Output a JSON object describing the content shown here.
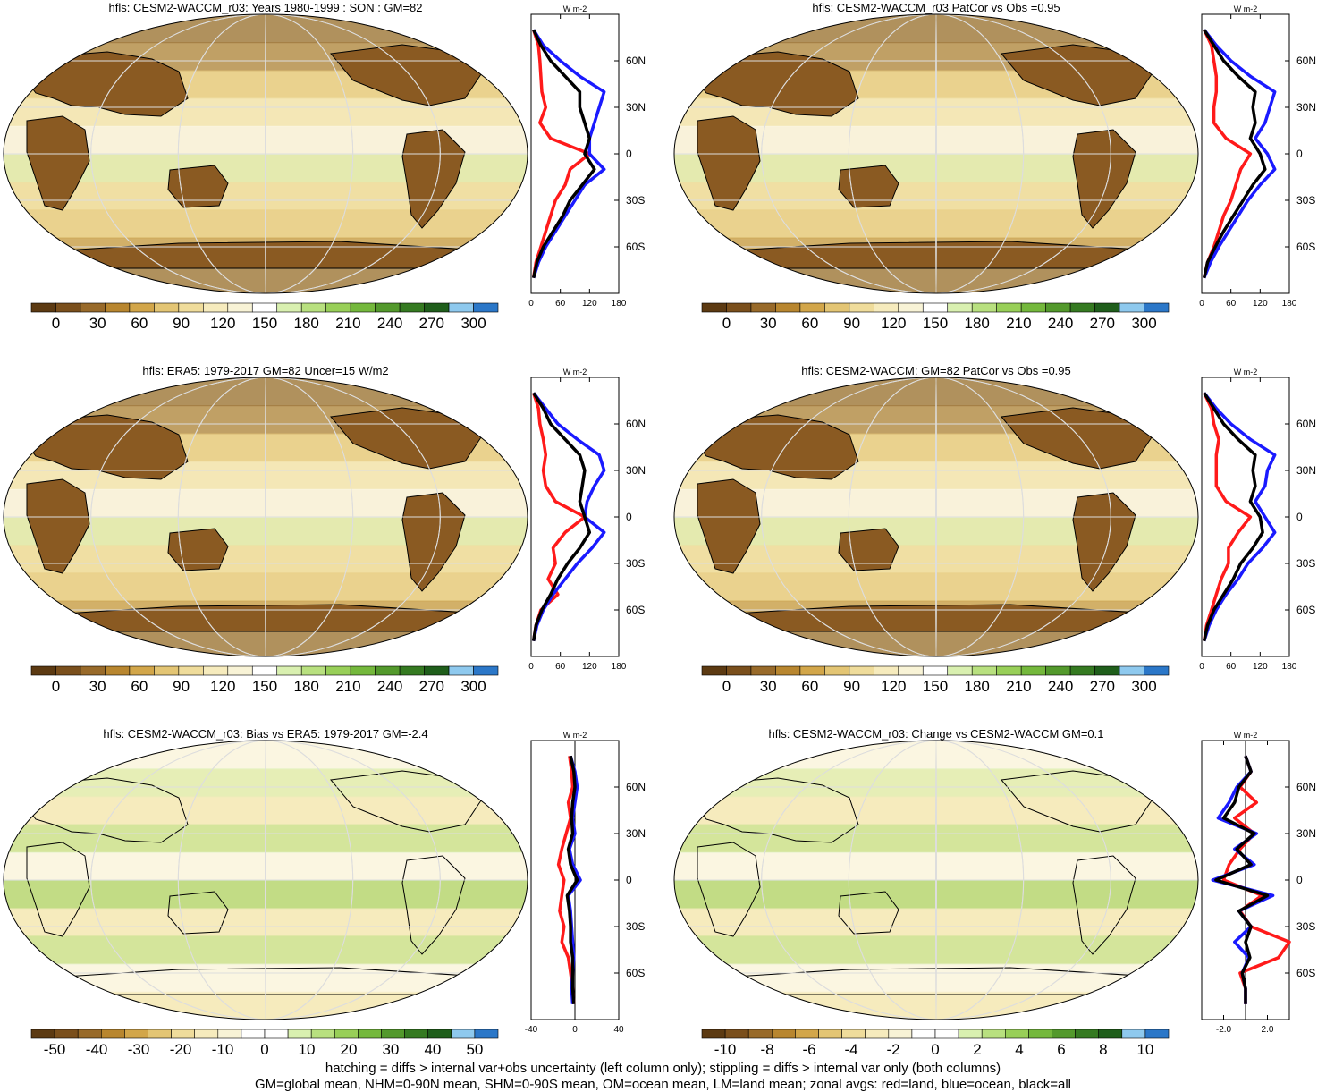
{
  "footer": {
    "line1": "hatching = diffs > internal var+obs uncertainty (left column only); stippling = diffs > internal var only (both columns)",
    "line2": "GM=global mean, NHM=0-90N mean, SHM=0-90S mean, OM=ocean mean, LM=land mean; zonal avgs: red=land, blue=ocean, black=all"
  },
  "colors": {
    "land": "#ff1a1a",
    "ocean": "#1a1aff",
    "all": "#000000",
    "abs_palette": [
      "#5c3a12",
      "#7a4f1c",
      "#986a2a",
      "#b8862f",
      "#d2a64a",
      "#e3c574",
      "#efdc9b",
      "#f6ebbd",
      "#f8f3d6",
      "#ffffff",
      "#d9f0b0",
      "#b8e07f",
      "#98cf58",
      "#74b83c",
      "#53992c",
      "#357a21",
      "#1f5e1b",
      "#8ec9ee",
      "#2b77c8"
    ],
    "diff_palette": [
      "#5c3a12",
      "#7a4f1c",
      "#986a2a",
      "#b8862f",
      "#d2a64a",
      "#e3c574",
      "#efdc9b",
      "#f6ebbd",
      "#f8f3d6",
      "#ffffff",
      "#ffffff",
      "#d9f0b0",
      "#b8e07f",
      "#98cf58",
      "#74b83c",
      "#53992c",
      "#357a21",
      "#1f5e1b",
      "#8ec9ee",
      "#2b77c8"
    ],
    "continent_fill": "#8a5a22",
    "ocean_fill": "#f2e3ad"
  },
  "chart_data": [
    {
      "type": "heatmap",
      "title": "hfls: CESM2-WACCM_r03: Years 1980-1999 : SON : GM=82",
      "colorbar": {
        "labels": [
          "0",
          "30",
          "60",
          "90",
          "120",
          "150",
          "180",
          "210",
          "240",
          "270",
          "300"
        ]
      },
      "zonal": {
        "unit": "W m-2",
        "xlim": [
          0,
          180
        ],
        "xticks": [
          "0",
          "60",
          "120",
          "180"
        ],
        "ylim": [
          -90,
          90
        ],
        "yticks": [
          "60N",
          "30N",
          "0",
          "30S",
          "60S"
        ],
        "lat": [
          80,
          70,
          60,
          50,
          40,
          30,
          20,
          10,
          0,
          -10,
          -20,
          -30,
          -40,
          -50,
          -60,
          -70,
          -80
        ],
        "land": [
          5,
          15,
          18,
          20,
          22,
          30,
          18,
          40,
          120,
          80,
          70,
          50,
          40,
          30,
          20,
          10,
          5
        ],
        "ocean": [
          5,
          25,
          60,
          100,
          150,
          140,
          130,
          120,
          120,
          150,
          110,
          90,
          70,
          50,
          30,
          15,
          5
        ],
        "all": [
          5,
          20,
          40,
          70,
          100,
          100,
          110,
          120,
          110,
          130,
          105,
          80,
          65,
          45,
          25,
          12,
          5
        ]
      }
    },
    {
      "type": "heatmap",
      "title": "hfls: CESM2-WACCM_r03 PatCor vs Obs =0.95",
      "colorbar": {
        "labels": [
          "0",
          "30",
          "60",
          "90",
          "120",
          "150",
          "180",
          "210",
          "240",
          "270",
          "300"
        ]
      },
      "zonal": {
        "unit": "W m-2",
        "xlim": [
          0,
          180
        ],
        "xticks": [
          "0",
          "60",
          "120",
          "180"
        ],
        "ylim": [
          -90,
          90
        ],
        "yticks": [
          "60N",
          "30N",
          "0",
          "30S",
          "60S"
        ],
        "lat": [
          80,
          70,
          60,
          50,
          40,
          30,
          20,
          10,
          0,
          -10,
          -20,
          -30,
          -40,
          -50,
          -60,
          -70,
          -80
        ],
        "land": [
          5,
          20,
          25,
          30,
          30,
          25,
          25,
          50,
          100,
          80,
          70,
          60,
          45,
          35,
          25,
          12,
          5
        ],
        "ocean": [
          5,
          30,
          60,
          100,
          150,
          140,
          130,
          110,
          135,
          150,
          120,
          95,
          75,
          55,
          35,
          18,
          5
        ],
        "all": [
          5,
          25,
          45,
          75,
          110,
          105,
          110,
          100,
          120,
          130,
          105,
          85,
          65,
          45,
          28,
          12,
          5
        ]
      }
    },
    {
      "type": "heatmap",
      "title": "hfls: ERA5: 1979-2017 GM=82 Uncer=15 W/m2",
      "colorbar": {
        "labels": [
          "0",
          "30",
          "60",
          "90",
          "120",
          "150",
          "180",
          "210",
          "240",
          "270",
          "300"
        ]
      },
      "zonal": {
        "unit": "W m-2",
        "xlim": [
          0,
          180
        ],
        "xticks": [
          "0",
          "60",
          "120",
          "180"
        ],
        "ylim": [
          -90,
          90
        ],
        "yticks": [
          "60N",
          "30N",
          "0",
          "30S",
          "60S"
        ],
        "lat": [
          80,
          70,
          60,
          50,
          40,
          30,
          20,
          10,
          0,
          -10,
          -20,
          -30,
          -40,
          -50,
          -60,
          -70,
          -80
        ],
        "land": [
          5,
          15,
          18,
          25,
          30,
          25,
          30,
          50,
          110,
          70,
          45,
          50,
          35,
          55,
          20,
          10,
          5
        ],
        "ocean": [
          5,
          30,
          55,
          95,
          140,
          150,
          130,
          115,
          110,
          150,
          125,
          95,
          70,
          45,
          25,
          12,
          5
        ],
        "all": [
          5,
          25,
          40,
          70,
          100,
          110,
          105,
          100,
          110,
          120,
          100,
          75,
          55,
          40,
          22,
          10,
          5
        ]
      }
    },
    {
      "type": "heatmap",
      "title": "hfls: CESM2-WACCM: GM=82 PatCor vs Obs =0.95",
      "colorbar": {
        "labels": [
          "0",
          "30",
          "60",
          "90",
          "120",
          "150",
          "180",
          "210",
          "240",
          "270",
          "300"
        ]
      },
      "zonal": {
        "unit": "W m-2",
        "xlim": [
          0,
          180
        ],
        "xticks": [
          "0",
          "60",
          "120",
          "180"
        ],
        "ylim": [
          -90,
          90
        ],
        "yticks": [
          "60N",
          "30N",
          "0",
          "30S",
          "60S"
        ],
        "lat": [
          80,
          70,
          60,
          50,
          40,
          30,
          20,
          10,
          0,
          -10,
          -20,
          -30,
          -40,
          -50,
          -60,
          -70,
          -80
        ],
        "land": [
          5,
          20,
          25,
          35,
          30,
          30,
          30,
          50,
          100,
          75,
          55,
          55,
          40,
          30,
          20,
          10,
          5
        ],
        "ocean": [
          5,
          30,
          60,
          100,
          150,
          135,
          130,
          110,
          130,
          150,
          125,
          95,
          75,
          50,
          30,
          15,
          5
        ],
        "all": [
          5,
          25,
          45,
          75,
          110,
          105,
          110,
          100,
          120,
          125,
          105,
          80,
          65,
          45,
          25,
          12,
          5
        ]
      }
    },
    {
      "type": "heatmap",
      "title": "hfls: CESM2-WACCM_r03: Bias vs ERA5: 1979-2017  GM=-2.4",
      "colorbar": {
        "labels": [
          "-50",
          "-40",
          "-30",
          "-20",
          "-10",
          "0",
          "10",
          "20",
          "30",
          "40",
          "50"
        ]
      },
      "zonal": {
        "unit": "W m-2",
        "xlim": [
          -40,
          40
        ],
        "xticks": [
          "-40",
          "0",
          "40"
        ],
        "ylim": [
          -90,
          90
        ],
        "yticks": [
          "60N",
          "30N",
          "0",
          "30S",
          "60S"
        ],
        "lat": [
          80,
          70,
          60,
          50,
          40,
          30,
          20,
          10,
          0,
          -10,
          -20,
          -30,
          -40,
          -50,
          -60,
          -70,
          -80
        ],
        "land": [
          -5,
          -3,
          -2,
          -6,
          -4,
          -8,
          -12,
          -15,
          -10,
          -12,
          -14,
          -10,
          -12,
          -6,
          -4,
          -2,
          -1
        ],
        "ocean": [
          -4,
          0,
          2,
          0,
          -2,
          0,
          -5,
          -2,
          5,
          -6,
          -4,
          -3,
          -2,
          -1,
          -2,
          -3,
          -2
        ],
        "all": [
          -4,
          -1,
          0,
          -2,
          -3,
          -2,
          -6,
          -4,
          2,
          -7,
          -5,
          -4,
          -4,
          -2,
          -2,
          -2,
          -1
        ]
      }
    },
    {
      "type": "heatmap",
      "title": "hfls: CESM2-WACCM_r03: Change vs CESM2-WACCM GM=0.1",
      "colorbar": {
        "labels": [
          "-10",
          "-8",
          "-6",
          "-4",
          "-2",
          "0",
          "2",
          "4",
          "6",
          "8",
          "10"
        ]
      },
      "zonal": {
        "unit": "W m-2",
        "xlim": [
          -4,
          4
        ],
        "xticks": [
          "-2.0",
          "2.0"
        ],
        "ylim": [
          -90,
          90
        ],
        "yticks": [
          "60N",
          "30N",
          "0",
          "30S",
          "60S"
        ],
        "lat": [
          80,
          70,
          60,
          50,
          40,
          30,
          20,
          10,
          0,
          -10,
          -20,
          -30,
          -40,
          -50,
          -60,
          -70,
          -80
        ],
        "land": [
          0,
          0.5,
          -0.5,
          1,
          -1,
          0.8,
          -0.5,
          -1.5,
          -2,
          1.5,
          -0.5,
          0.5,
          4,
          3,
          -0.5,
          0,
          0
        ],
        "ocean": [
          0,
          0.5,
          -0.8,
          -1.5,
          -2.5,
          1,
          -1,
          0.8,
          -3,
          2.5,
          -0.6,
          0.5,
          -1,
          0.3,
          -0.3,
          0,
          0
        ],
        "all": [
          0,
          0.5,
          -0.6,
          -1,
          -2,
          0.8,
          -0.8,
          0.5,
          -2.7,
          2,
          -0.6,
          0.5,
          0,
          0.4,
          -0.3,
          0,
          0
        ]
      }
    }
  ]
}
